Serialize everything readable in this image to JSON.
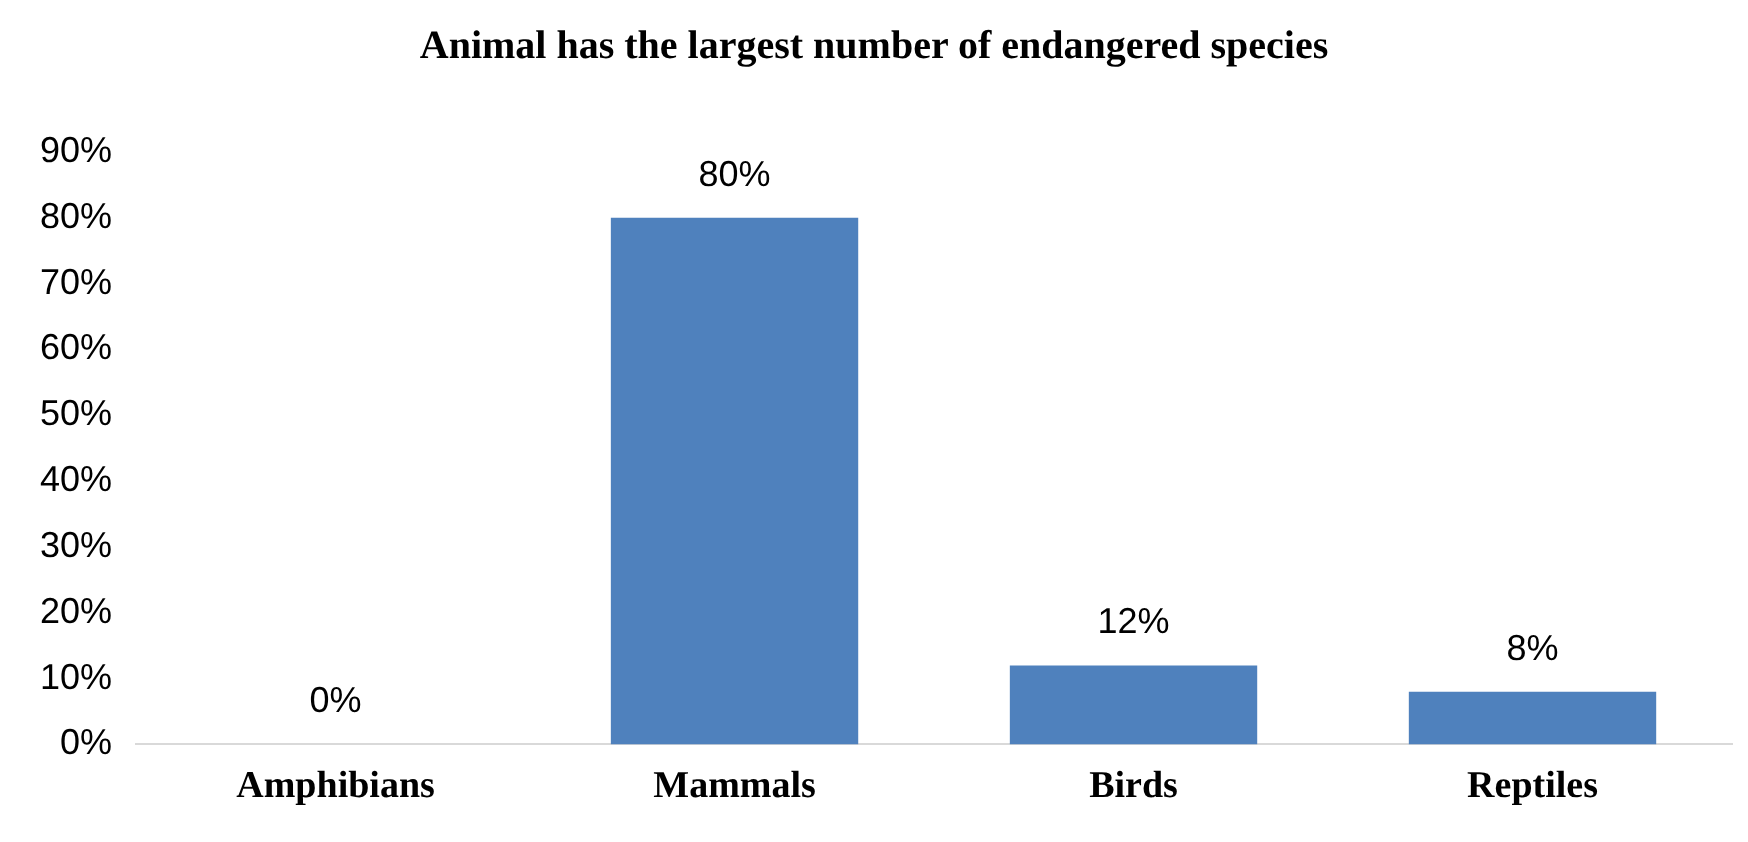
{
  "chart_data": {
    "type": "bar",
    "title": "Animal has the largest number of endangered species",
    "categories": [
      "Amphibians",
      "Mammals",
      "Birds",
      "Reptiles"
    ],
    "values": [
      0,
      80,
      12,
      8
    ],
    "value_labels": [
      "0%",
      "80%",
      "12%",
      "8%"
    ],
    "color": "#4f81bd",
    "ylim": [
      0,
      90
    ],
    "yticks": [
      {
        "value": 0,
        "label": "0%"
      },
      {
        "value": 10,
        "label": "10%"
      },
      {
        "value": 20,
        "label": "20%"
      },
      {
        "value": 30,
        "label": "30%"
      },
      {
        "value": 40,
        "label": "40%"
      },
      {
        "value": 50,
        "label": "50%"
      },
      {
        "value": 60,
        "label": "60%"
      },
      {
        "value": 70,
        "label": "70%"
      },
      {
        "value": 80,
        "label": "80%"
      },
      {
        "value": 90,
        "label": "90%"
      }
    ]
  }
}
